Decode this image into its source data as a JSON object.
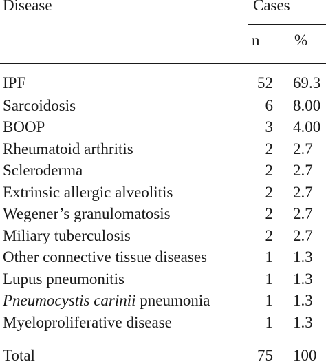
{
  "table": {
    "header": {
      "disease": "Disease",
      "cases": "Cases",
      "n": "n",
      "pct": "%"
    },
    "rows": [
      {
        "disease": "IPF",
        "n": "52",
        "pct": "69.3"
      },
      {
        "disease": "Sarcoidosis",
        "n": "6",
        "pct": "8.00"
      },
      {
        "disease": "BOOP",
        "n": "3",
        "pct": "4.00"
      },
      {
        "disease": "Rheumatoid arthritis",
        "n": "2",
        "pct": "2.7"
      },
      {
        "disease": "Scleroderma",
        "n": "2",
        "pct": "2.7"
      },
      {
        "disease": "Extrinsic allergic alveolitis",
        "n": "2",
        "pct": "2.7"
      },
      {
        "disease": "Wegener’s granulomatosis",
        "n": "2",
        "pct": "2.7"
      },
      {
        "disease": "Miliary tuberculosis",
        "n": "2",
        "pct": "2.7"
      },
      {
        "disease": "Other connective tissue diseases",
        "n": "1",
        "pct": "1.3"
      },
      {
        "disease": "Lupus pneumonitis",
        "n": "1",
        "pct": "1.3"
      },
      {
        "disease_italic": "Pneumocystis carinii",
        "disease_rest": " pneumonia",
        "n": "1",
        "pct": "1.3"
      },
      {
        "disease": "Myeloproliferative disease",
        "n": "1",
        "pct": "1.3"
      }
    ],
    "total": {
      "label": "Total",
      "n": "75",
      "pct": "100"
    }
  }
}
